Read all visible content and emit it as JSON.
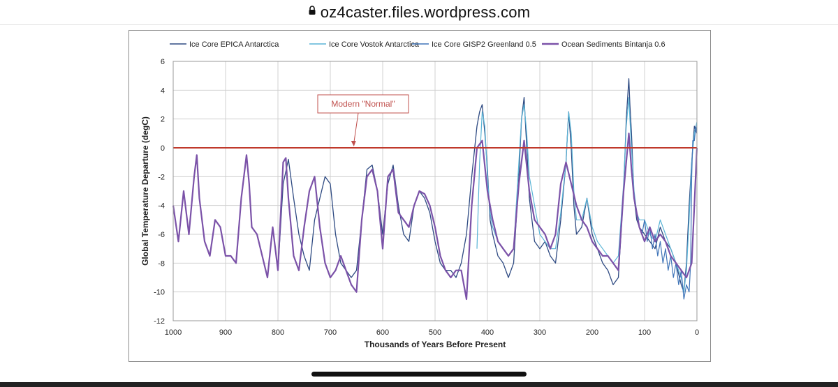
{
  "browser": {
    "url": "oz4caster.files.wordpress.com",
    "lock_icon": "lock-icon"
  },
  "colors": {
    "epica": "#2e4a82",
    "vostok": "#5ab4d6",
    "gisp2": "#3f74b8",
    "bintanja": "#7b52a8",
    "normal_line": "#c0392b",
    "annotation": "#c0504d",
    "grid": "#d0d0d0"
  },
  "chart_data": {
    "type": "line",
    "title": "",
    "xlabel": "Thousands of Years Before Present",
    "ylabel": "Global Temperature Departure (degC)",
    "xlim": [
      1000,
      0
    ],
    "ylim": [
      -12,
      6
    ],
    "x_ticks": [
      1000,
      900,
      800,
      700,
      600,
      500,
      400,
      300,
      200,
      100,
      0
    ],
    "y_ticks": [
      6,
      4,
      2,
      0,
      -2,
      -4,
      -6,
      -8,
      -10,
      -12
    ],
    "x_tick_labels": [
      "1000",
      "900",
      "800",
      "700",
      "600",
      "500",
      "400",
      "300",
      "200",
      "100",
      "0"
    ],
    "y_tick_labels": [
      "6",
      "4",
      "2",
      "0",
      "-2",
      "-4",
      "-6",
      "-8",
      "-10",
      "-12"
    ],
    "grid": true,
    "legend_position": "top",
    "series": [
      {
        "name": "Ice Core EPICA  Antarctica",
        "x": [
          800,
          790,
          780,
          770,
          760,
          750,
          740,
          730,
          720,
          710,
          700,
          690,
          680,
          670,
          660,
          650,
          640,
          630,
          620,
          610,
          600,
          590,
          580,
          570,
          560,
          550,
          540,
          530,
          520,
          510,
          500,
          490,
          480,
          470,
          460,
          450,
          440,
          430,
          420,
          415,
          410,
          405,
          400,
          395,
          390,
          380,
          370,
          360,
          350,
          340,
          335,
          330,
          325,
          320,
          310,
          300,
          290,
          280,
          270,
          260,
          250,
          245,
          240,
          235,
          230,
          220,
          210,
          200,
          190,
          180,
          170,
          160,
          150,
          140,
          135,
          130,
          128,
          125,
          120,
          115,
          110,
          100,
          90,
          80,
          70,
          60,
          50,
          40,
          30,
          25,
          20,
          15,
          10,
          5,
          0
        ],
        "y": [
          -8.5,
          -2.5,
          -0.8,
          -3.5,
          -6,
          -7.5,
          -8.5,
          -5,
          -3.5,
          -2,
          -2.5,
          -6,
          -8,
          -8.5,
          -9,
          -8.5,
          -5,
          -1.5,
          -1.2,
          -3,
          -6,
          -2.5,
          -1.2,
          -4,
          -6,
          -6.5,
          -4,
          -3,
          -3.5,
          -4.5,
          -6.5,
          -8,
          -8.5,
          -8.5,
          -9,
          -8,
          -6,
          -2,
          1.5,
          2.5,
          3,
          1,
          -1.5,
          -5,
          -6,
          -7.5,
          -8,
          -9,
          -8,
          -2,
          2,
          3.5,
          0,
          -3.5,
          -6.5,
          -7,
          -6.5,
          -7.5,
          -8,
          -5,
          -1,
          2.5,
          0,
          -4,
          -6,
          -5.5,
          -3.5,
          -6,
          -7,
          -8,
          -8.5,
          -9.5,
          -9,
          -3,
          2,
          4.8,
          3,
          1,
          -3.5,
          -5,
          -5.5,
          -6,
          -6.5,
          -7,
          -5.5,
          -6.5,
          -7,
          -8,
          -9.5,
          -10,
          -8,
          -4,
          -1,
          1.5,
          1
        ]
      },
      {
        "name": "Ice Core Vostok Antarctica",
        "x": [
          420,
          415,
          410,
          405,
          400,
          395,
          390,
          380,
          370,
          360,
          350,
          340,
          335,
          330,
          325,
          320,
          315,
          310,
          300,
          290,
          280,
          270,
          260,
          250,
          245,
          240,
          235,
          230,
          220,
          210,
          200,
          190,
          180,
          170,
          160,
          150,
          140,
          135,
          130,
          128,
          125,
          120,
          115,
          110,
          100,
          90,
          80,
          70,
          60,
          50,
          40,
          30,
          25,
          20,
          15,
          10,
          5,
          0
        ],
        "y": [
          -7,
          -1,
          2.5,
          1.5,
          -2,
          -4.5,
          -5.5,
          -6.5,
          -7,
          -7.5,
          -7,
          -1,
          2,
          3,
          1,
          -2,
          -3,
          -4,
          -6,
          -6.5,
          -7,
          -7,
          -4.5,
          -1,
          2.5,
          1,
          -3,
          -5,
          -5,
          -3.5,
          -5.5,
          -6.5,
          -7,
          -7.5,
          -8,
          -7.5,
          -2.5,
          1.5,
          3.5,
          2,
          0,
          -3,
          -4.5,
          -5,
          -5,
          -6,
          -6.5,
          -5,
          -6,
          -7,
          -8,
          -9,
          -10,
          -8.5,
          -5,
          -1,
          1,
          1.8
        ]
      },
      {
        "name": "Ice Core GISP2  Greenland 0.5",
        "x": [
          110,
          105,
          100,
          95,
          90,
          85,
          80,
          75,
          70,
          65,
          60,
          55,
          50,
          45,
          40,
          35,
          30,
          25,
          20,
          15,
          12,
          10,
          8,
          5,
          2,
          0
        ],
        "y": [
          -5.5,
          -6,
          -5,
          -6.5,
          -5.5,
          -7,
          -6,
          -7.5,
          -6.5,
          -8,
          -7,
          -8.5,
          -7.5,
          -9,
          -8,
          -9.5,
          -8.5,
          -10.5,
          -9.5,
          -10,
          -8,
          -2,
          0.5,
          0.5,
          1.5,
          1
        ]
      },
      {
        "name": "Ocean Sediments Bintanja  0.6",
        "x": [
          1000,
          990,
          980,
          970,
          960,
          955,
          950,
          940,
          930,
          920,
          910,
          900,
          890,
          880,
          870,
          860,
          855,
          850,
          840,
          830,
          820,
          810,
          800,
          790,
          785,
          780,
          770,
          760,
          750,
          740,
          730,
          720,
          710,
          700,
          690,
          680,
          670,
          660,
          650,
          640,
          630,
          620,
          610,
          600,
          590,
          580,
          570,
          560,
          550,
          540,
          530,
          520,
          510,
          500,
          490,
          480,
          470,
          460,
          450,
          440,
          430,
          420,
          410,
          400,
          390,
          380,
          370,
          360,
          350,
          340,
          330,
          320,
          310,
          300,
          290,
          280,
          270,
          260,
          250,
          240,
          230,
          220,
          210,
          200,
          190,
          180,
          170,
          160,
          150,
          140,
          130,
          125,
          120,
          110,
          100,
          90,
          80,
          70,
          60,
          50,
          40,
          30,
          20,
          10,
          5,
          0
        ],
        "y": [
          -4,
          -6.5,
          -3,
          -6,
          -2,
          -0.5,
          -3.5,
          -6.5,
          -7.5,
          -5,
          -5.5,
          -7.5,
          -7.5,
          -8,
          -3.5,
          -0.5,
          -2.5,
          -5.5,
          -6,
          -7.5,
          -9,
          -5.5,
          -8.5,
          -1,
          -0.7,
          -3.5,
          -7.5,
          -8.5,
          -5.5,
          -3,
          -2,
          -5.5,
          -8,
          -9,
          -8.5,
          -7.5,
          -8.5,
          -9.5,
          -10,
          -5,
          -2,
          -1.5,
          -3,
          -7,
          -2,
          -1.5,
          -4.5,
          -5,
          -5.5,
          -4,
          -3,
          -3.2,
          -4,
          -5.5,
          -7.5,
          -8.5,
          -9,
          -8.5,
          -8.5,
          -10.5,
          -4,
          0,
          0.5,
          -3,
          -5,
          -6.5,
          -7,
          -7.5,
          -7,
          -2.5,
          0.5,
          -3,
          -5,
          -5.5,
          -6,
          -7,
          -6,
          -2.5,
          -1,
          -2.5,
          -4,
          -5,
          -5.5,
          -6.5,
          -7,
          -7.5,
          -7.5,
          -8,
          -8.5,
          -3,
          1,
          -1.5,
          -3.5,
          -5.5,
          -6.5,
          -5.5,
          -6.5,
          -6,
          -6.5,
          -7.5,
          -8,
          -8.5,
          -9,
          -8,
          -4,
          0
        ]
      }
    ],
    "reference_line": {
      "y": 0
    },
    "annotation": {
      "text": "Modern \"Normal\"",
      "arrow_to": {
        "x": 655,
        "y": 0
      }
    }
  }
}
